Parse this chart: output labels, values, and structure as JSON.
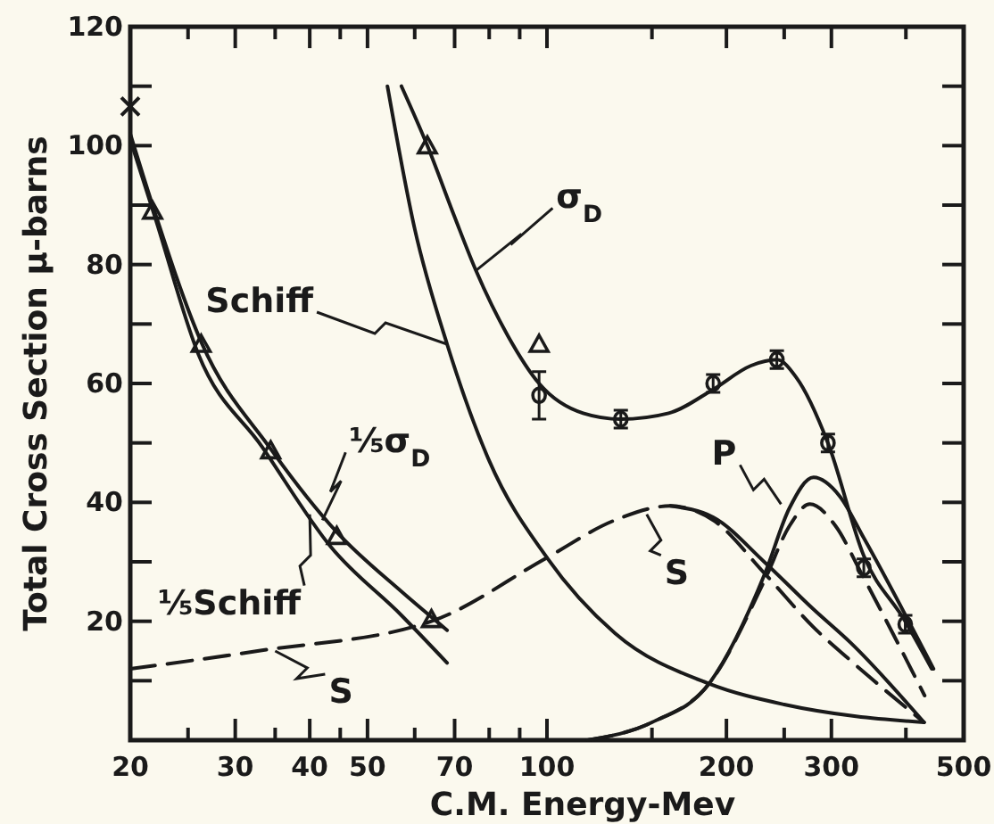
{
  "chart_data": {
    "type": "line",
    "xlabel": "C.M. Energy-Mev",
    "ylabel": "Total Cross Section μ-barns",
    "log": "x",
    "grid": false,
    "xlim": [
      20,
      500
    ],
    "ylim": [
      0,
      120
    ],
    "xticks": [
      20,
      {
        "value": 25,
        "label": null
      },
      30,
      {
        "value": 35,
        "label": null
      },
      40,
      {
        "value": 45,
        "label": null
      },
      50,
      {
        "value": 60,
        "label": null
      },
      70,
      {
        "value": 80,
        "label": null
      },
      {
        "value": 90,
        "label": null
      },
      100,
      {
        "value": 150,
        "label": null
      },
      200,
      {
        "value": 250,
        "label": null
      },
      300,
      {
        "value": 400,
        "label": null
      },
      500
    ],
    "yticks": [
      {
        "value": 10,
        "label": null
      },
      20,
      {
        "value": 30,
        "label": null
      },
      40,
      {
        "value": 50,
        "label": null
      },
      60,
      {
        "value": 70,
        "label": null
      },
      80,
      {
        "value": 90,
        "label": null
      },
      100,
      {
        "value": 110,
        "label": null
      },
      120
    ],
    "series": [
      {
        "color": "#1a1a1a",
        "marker": "none",
        "line_style": "solid",
        "x": [
          57,
          63,
          70,
          76,
          86,
          97,
          115,
          133,
          160,
          190,
          220,
          243,
          262,
          296,
          340,
          399,
          442
        ],
        "values": [
          110,
          100,
          88,
          79,
          68,
          60,
          55,
          54,
          55,
          59,
          63,
          64,
          61,
          50,
          31,
          20,
          12
        ]
      },
      {
        "color": "#1a1a1a",
        "marker": "none",
        "line_style": "solid",
        "x": [
          54,
          60,
          68,
          80,
          100,
          130,
          187,
          250,
          330,
          429
        ],
        "values": [
          110,
          86,
          66.6,
          47,
          30.7,
          18,
          9.5,
          6,
          4,
          3
        ]
      },
      {
        "color": "#1a1a1a",
        "marker": "none",
        "line_style": "solid",
        "x": [
          20,
          21.8,
          26.3,
          34.4,
          44.4,
          57,
          68
        ],
        "values": [
          102,
          90,
          67,
          49,
          35,
          25,
          18.5
        ]
      },
      {
        "color": "#1a1a1a",
        "marker": "none",
        "line_style": "solid",
        "x": [
          20,
          22,
          26,
          33.3,
          43.4,
          57,
          68
        ],
        "values": [
          101,
          88,
          65,
          49.3,
          32.5,
          21,
          13
        ]
      },
      {
        "color": "#1a1a1a",
        "marker": "none",
        "line_style": "dashed",
        "x": [
          20,
          32.7,
          64,
          100,
          130,
          161,
          190,
          232,
          280,
          323,
          429
        ],
        "values": [
          12,
          15,
          20,
          30.7,
          37,
          39.4,
          37,
          28,
          19,
          13.4,
          3
        ]
      },
      {
        "color": "#1a1a1a",
        "marker": "none",
        "line_style": "solid",
        "x": [
          161,
          190,
          232,
          280,
          323,
          429
        ],
        "values": [
          39.4,
          37.5,
          29.9,
          22,
          16.4,
          3
        ]
      },
      {
        "color": "#1a1a1a",
        "marker": "none",
        "line_style": "solid",
        "x": [
          117,
          150,
          187,
          232,
          255,
          280,
          310,
          340,
          445
        ],
        "values": [
          0,
          3,
          9.5,
          28,
          39,
          44.2,
          41,
          34,
          12
        ]
      },
      {
        "color": "#1a1a1a",
        "marker": "none",
        "line_style": "dashed",
        "x": [
          117,
          150,
          187,
          232,
          255,
          276,
          305,
          337,
          430
        ],
        "values": [
          0,
          3,
          9.5,
          27,
          36,
          39.7,
          36,
          28,
          7.5
        ]
      },
      {
        "type": "scatter",
        "color": "#1a1a1a",
        "marker": "circle",
        "x": [
          97,
          133,
          190,
          243,
          296,
          340,
          399
        ],
        "values": [
          58,
          54,
          60,
          64,
          50,
          29,
          19.5
        ],
        "errors": [
          4,
          1.5,
          1.5,
          1.5,
          1.5,
          1.5,
          1.5
        ]
      },
      {
        "type": "scatter",
        "color": "#1a1a1a",
        "marker": "triangle",
        "x": [
          21.8,
          26.3,
          34.4,
          44.4,
          64,
          63,
          97
        ],
        "values": [
          89,
          66.6,
          48.7,
          34.3,
          20.3,
          100,
          66.6
        ]
      },
      {
        "type": "scatter",
        "color": "#1a1a1a",
        "marker": "cross",
        "x": [
          20
        ],
        "values": [
          106.6
        ]
      }
    ],
    "annotations": [
      {
        "text": "σ$_{D}$",
        "x": 76,
        "y": 79
      },
      {
        "text": "Schiff",
        "x": 68,
        "y": 66.6
      },
      {
        "text": "⅕σ$_{D}$",
        "x": 42,
        "y": 37
      },
      {
        "text": "⅕Schiff",
        "x": 40,
        "y": 38
      },
      {
        "text": "S",
        "x": 35,
        "y": 15
      },
      {
        "text": "S",
        "x": 147,
        "y": 38
      },
      {
        "text": "P",
        "x": 247,
        "y": 39.7
      }
    ]
  }
}
